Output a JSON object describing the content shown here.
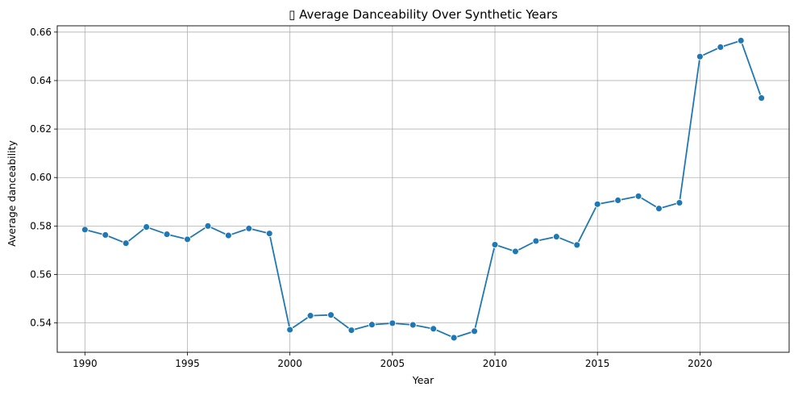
{
  "chart_data": {
    "type": "line",
    "title": "▯ Average Danceability Over Synthetic Years",
    "xlabel": "Year",
    "ylabel": "Average danceability",
    "xlim": [
      1988.65,
      2024.35
    ],
    "ylim": [
      0.5279,
      0.6626
    ],
    "xticks": [
      1990,
      1995,
      2000,
      2005,
      2010,
      2015,
      2020
    ],
    "yticks": [
      0.54,
      0.56,
      0.58,
      0.6,
      0.62,
      0.64,
      0.66
    ],
    "ytick_labels": [
      "0.54",
      "0.56",
      "0.58",
      "0.60",
      "0.62",
      "0.64",
      "0.66"
    ],
    "grid": true,
    "color": "#1f77b4",
    "x": [
      1990,
      1991,
      1992,
      1993,
      1994,
      1995,
      1996,
      1997,
      1998,
      1999,
      2000,
      2001,
      2002,
      2003,
      2004,
      2005,
      2006,
      2007,
      2008,
      2009,
      2010,
      2011,
      2012,
      2013,
      2014,
      2015,
      2016,
      2017,
      2018,
      2019,
      2020,
      2021,
      2022,
      2023
    ],
    "series": [
      {
        "values": [
          0.5785,
          0.5763,
          0.5729,
          0.5796,
          0.5766,
          0.5745,
          0.58,
          0.5761,
          0.579,
          0.5769,
          0.5372,
          0.543,
          0.5433,
          0.537,
          0.5393,
          0.5399,
          0.5392,
          0.5376,
          0.5339,
          0.5366,
          0.5723,
          0.5695,
          0.5738,
          0.5756,
          0.5722,
          0.589,
          0.5906,
          0.5923,
          0.5872,
          0.5896,
          0.6499,
          0.6538,
          0.6565,
          0.6328
        ]
      }
    ]
  }
}
